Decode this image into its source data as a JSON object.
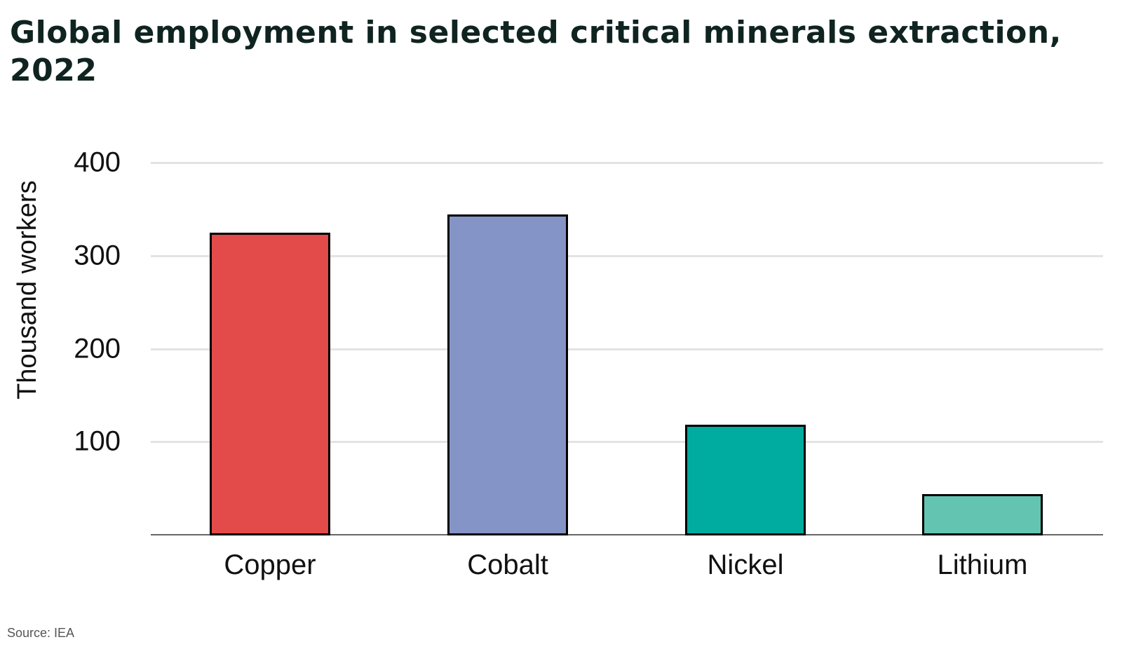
{
  "title": "Global employment in selected critical minerals extraction, 2022",
  "source": "Source:  IEA",
  "chart_data": {
    "type": "bar",
    "title": "Global employment in selected critical minerals extraction, 2022",
    "xlabel": "",
    "ylabel": "Thousand workers",
    "categories": [
      "Copper",
      "Cobalt",
      "Nickel",
      "Lithium"
    ],
    "values": [
      325,
      344,
      118,
      44
    ],
    "colors": [
      "#e34a4a",
      "#8594c6",
      "#00aba0",
      "#63c4b2"
    ],
    "yticks": [
      100,
      200,
      300,
      400
    ],
    "ylim": [
      0,
      400
    ],
    "grid": true,
    "legend": null
  }
}
